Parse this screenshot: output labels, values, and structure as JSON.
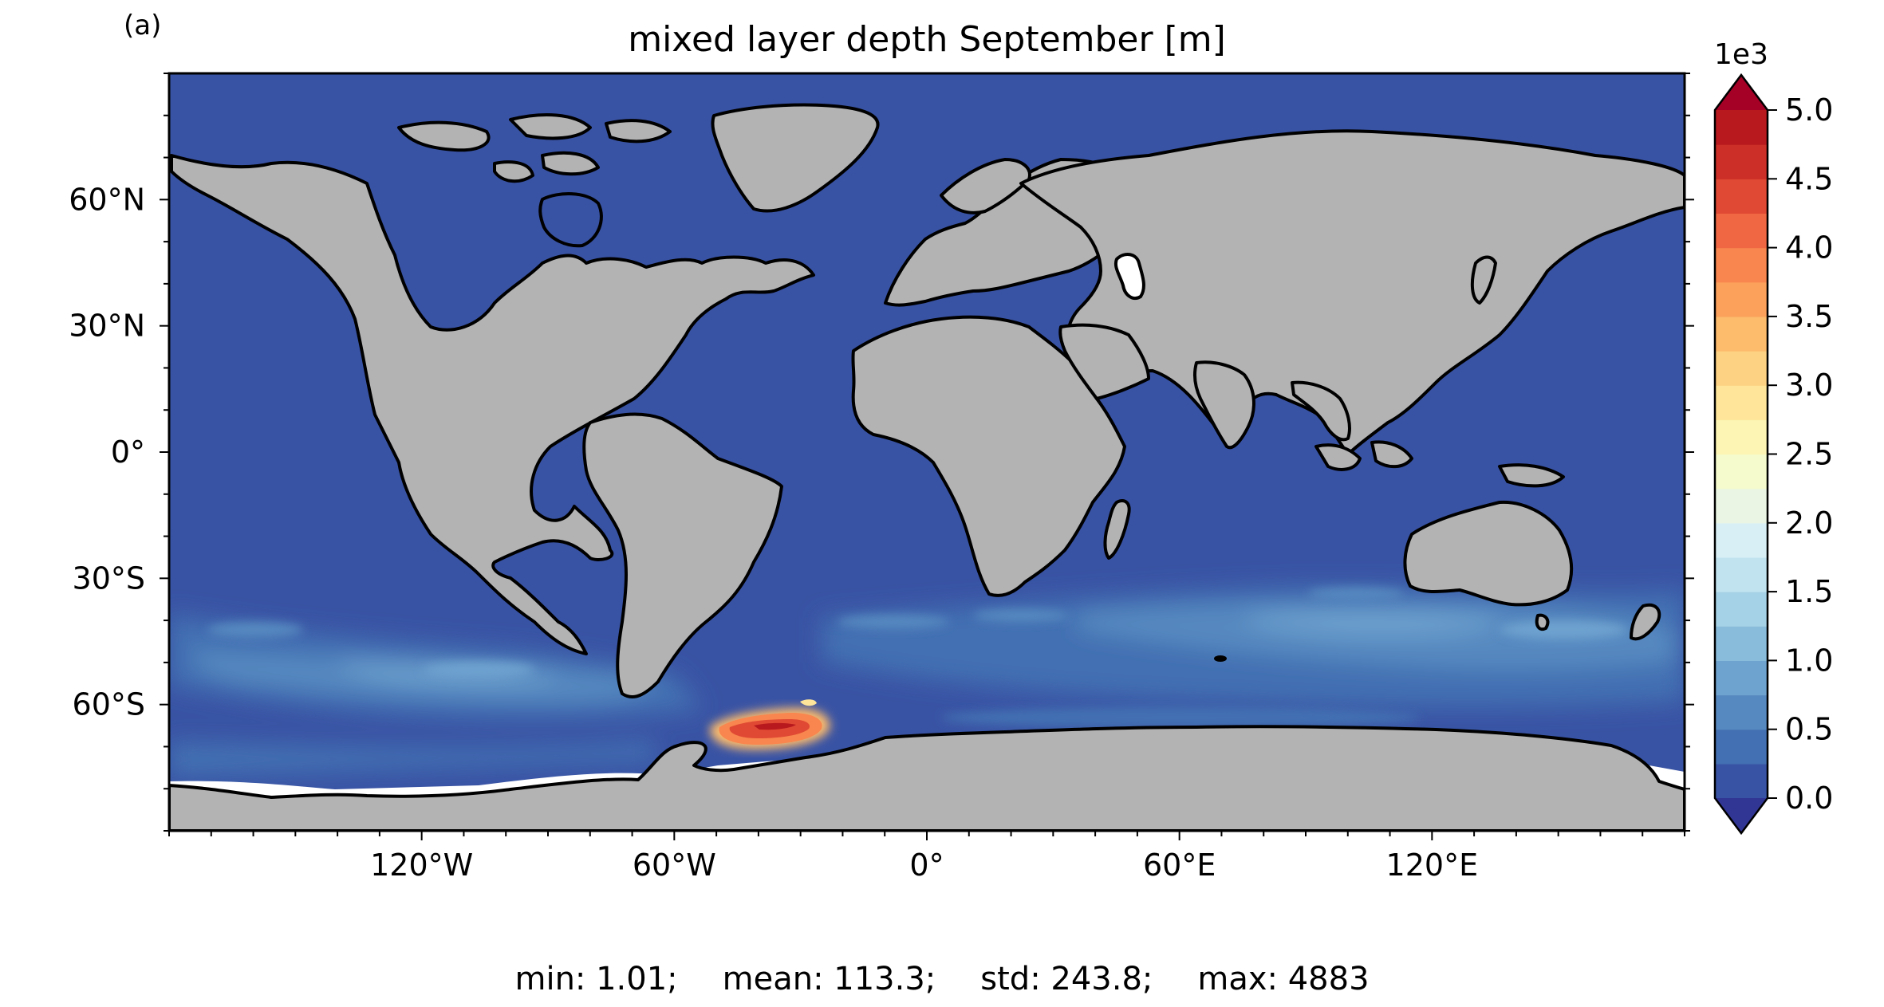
{
  "panel_label": "(a)",
  "title": "mixed layer depth September [m]",
  "map": {
    "projection": "PlateCarree",
    "extent": {
      "lon": [
        -180,
        180
      ],
      "lat": [
        -90,
        90
      ]
    },
    "lon_ticks": [
      {
        "value": -120,
        "label": "120°W"
      },
      {
        "value": -60,
        "label": "60°W"
      },
      {
        "value": 0,
        "label": "0°"
      },
      {
        "value": 60,
        "label": "60°E"
      },
      {
        "value": 120,
        "label": "120°E"
      }
    ],
    "lat_ticks": [
      {
        "value": 60,
        "label": "60°N"
      },
      {
        "value": 30,
        "label": "30°N"
      },
      {
        "value": 0,
        "label": "0°"
      },
      {
        "value": -30,
        "label": "30°S"
      },
      {
        "value": -60,
        "label": "60°S"
      }
    ],
    "land_color": "#b3b3b3",
    "ocean_base_color": "#3953a4",
    "coastline_color": "#000000",
    "sea_ice_color": "#ffffff"
  },
  "colorbar": {
    "multiplier_label": "1e3",
    "range": [
      0.0,
      5.0
    ],
    "step": 0.25,
    "extend": "both",
    "colormap": "RdYlBu_r",
    "tick_labels": [
      "0.0",
      "0.5",
      "1.0",
      "1.5",
      "2.0",
      "2.5",
      "3.0",
      "3.5",
      "4.0",
      "4.5",
      "5.0"
    ],
    "colors": [
      "#3953a4",
      "#4370b2",
      "#5689c0",
      "#6ea2cf",
      "#89bbdb",
      "#a5d2e6",
      "#c0e3ef",
      "#d8eff5",
      "#eaf6e3",
      "#f5fbcc",
      "#fdf5b3",
      "#fee59a",
      "#fed283",
      "#fdbb6c",
      "#fca15b",
      "#f8864e",
      "#f06843",
      "#e04933",
      "#cc2f27",
      "#b8191e"
    ],
    "over_color": "#a50026",
    "under_color": "#313695"
  },
  "stats": {
    "min": "min: 1.01;",
    "mean": "mean: 113.3;",
    "std": "std: 243.8;",
    "max": "max: 4883"
  }
}
